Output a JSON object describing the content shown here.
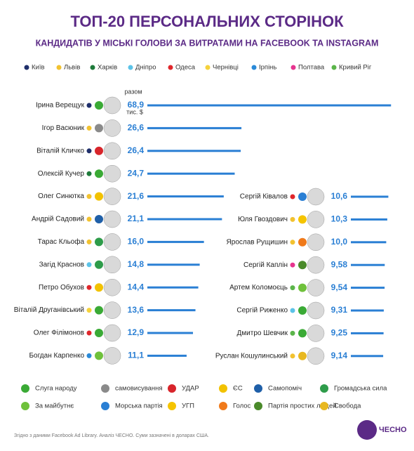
{
  "header": {
    "title": "ТОП-20 ПЕРСОНАЛЬНИХ СТОРІНОК",
    "subtitle": "КАНДИДАТІВ У МІСЬКІ ГОЛОВИ ЗА ВИТРАТАМИ НА FACEBOOK ТА INSTAGRAM"
  },
  "cities": [
    {
      "name": "Київ",
      "color": "#1f2f6b"
    },
    {
      "name": "Львів",
      "color": "#f2c230"
    },
    {
      "name": "Харків",
      "color": "#1e7a3a"
    },
    {
      "name": "Дніпро",
      "color": "#5cc3e8"
    },
    {
      "name": "Одеса",
      "color": "#e0262b"
    },
    {
      "name": "Чернівці",
      "color": "#f5d23c"
    },
    {
      "name": "Ірпінь",
      "color": "#2a8ad8"
    },
    {
      "name": "Полтава",
      "color": "#e6358f"
    },
    {
      "name": "Кривий Ріг",
      "color": "#5bb54a"
    }
  ],
  "parties": [
    {
      "name": "Слуга народу",
      "color": "#3aaa35"
    },
    {
      "name": "самовисування",
      "color": "#8a8a8a"
    },
    {
      "name": "УДАР",
      "color": "#d8252b"
    },
    {
      "name": "ЄС",
      "color": "#f2c200"
    },
    {
      "name": "Самопоміч",
      "color": "#1f5fa8"
    },
    {
      "name": "Громадська сила",
      "color": "#2e9c4a"
    },
    {
      "name": "За майбутнє",
      "color": "#6fc13b"
    },
    {
      "name": "Морська партія",
      "color": "#2a7fd4"
    },
    {
      "name": "УГП",
      "color": "#f5c400"
    },
    {
      "name": "Голос",
      "color": "#f07a1a"
    },
    {
      "name": "Партія простих людей",
      "color": "#4a8a2a"
    },
    {
      "name": "Свобода",
      "color": "#e8b820"
    }
  ],
  "chart_data": [
    {
      "type": "bar",
      "color": "#2a7fd4",
      "annotations": [
        "разом",
        "тис. $"
      ],
      "categories": [
        "Ірина Верещук",
        "Ігор Васюник",
        "Віталій Кличко",
        "Олексій Кучер",
        "Олег Синютка",
        "Андрій Садовий",
        "Тарас Кльофа",
        "Загід Краснов",
        "Петро Обухов",
        "Віталій Друганівський",
        "Олег Філімонов",
        "Богдан Карпенко"
      ],
      "values": [
        68.9,
        26.6,
        26.4,
        24.7,
        21.6,
        21.1,
        16.0,
        14.8,
        14.4,
        13.6,
        12.9,
        11.1
      ],
      "value_labels": [
        "68,9",
        "26,6",
        "26,4",
        "24,7",
        "21,6",
        "21,1",
        "16,0",
        "14,8",
        "14,4",
        "13,6",
        "12,9",
        "11,1"
      ],
      "city": [
        "Київ",
        "Львів",
        "Київ",
        "Харків",
        "Львів",
        "Львів",
        "Львів",
        "Дніпро",
        "Одеса",
        "Чернівці",
        "Одеса",
        "Ірпінь"
      ],
      "party": [
        "Слуга народу",
        "самовисування",
        "УДАР",
        "Слуга народу",
        "ЄС",
        "Самопоміч",
        "Громадська сила",
        "Громадська сила",
        "ЄС",
        "Слуга народу",
        "Слуга народу",
        "За майбутнє"
      ]
    },
    {
      "type": "bar",
      "color": "#2a7fd4",
      "categories": [
        "Сергій Ківалов",
        "Юля Гвоздович",
        "Ярослав Рущишин",
        "Сергій Каплін",
        "Артем Коломоєць",
        "Сергій Риженко",
        "Дмитро Шевчик",
        "Руслан Кошулинський"
      ],
      "values": [
        10.6,
        10.3,
        10.0,
        9.58,
        9.54,
        9.31,
        9.25,
        9.14
      ],
      "value_labels": [
        "10,6",
        "10,3",
        "10,0",
        "9,58",
        "9,54",
        "9,31",
        "9,25",
        "9,14"
      ],
      "city": [
        "Одеса",
        "Львів",
        "Львів",
        "Полтава",
        "Кривий Ріг",
        "Дніпро",
        "Кривий Ріг",
        "Львів"
      ],
      "party": [
        "Морська партія",
        "УГП",
        "Голос",
        "Партія простих людей",
        "За майбутнє",
        "Слуга народу",
        "Слуга народу",
        "Свобода"
      ]
    }
  ],
  "footer": {
    "source": "Згідно з даними Facebook Ad Library. Аналіз ЧЕСНО. Суми зазначені в доларах США.",
    "logo": "ЧЕСНО"
  }
}
